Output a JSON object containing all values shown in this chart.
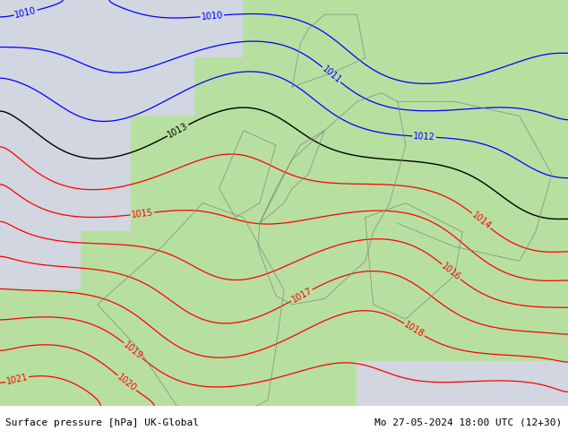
{
  "title_left": "Surface pressure [hPa] UK-Global",
  "title_right": "Mo 27-05-2024 18:00 UTC (12+30)",
  "sea_color": [
    0.82,
    0.84,
    0.88,
    1.0
  ],
  "land_color": [
    0.72,
    0.88,
    0.63,
    1.0
  ],
  "footer_bg": "#e0e0e0",
  "contour_color_low": "#0000ff",
  "contour_color_mid": "#000000",
  "contour_color_high": "#ff0000",
  "label_fontsize": 7,
  "title_fontsize": 8,
  "figsize": [
    6.34,
    4.9
  ],
  "dpi": 100,
  "pressure_levels_blue": [
    1010,
    1011,
    1012
  ],
  "pressure_levels_black": [
    1013
  ],
  "pressure_levels_red": [
    1014,
    1015,
    1016,
    1017,
    1018,
    1019,
    1020,
    1021
  ]
}
